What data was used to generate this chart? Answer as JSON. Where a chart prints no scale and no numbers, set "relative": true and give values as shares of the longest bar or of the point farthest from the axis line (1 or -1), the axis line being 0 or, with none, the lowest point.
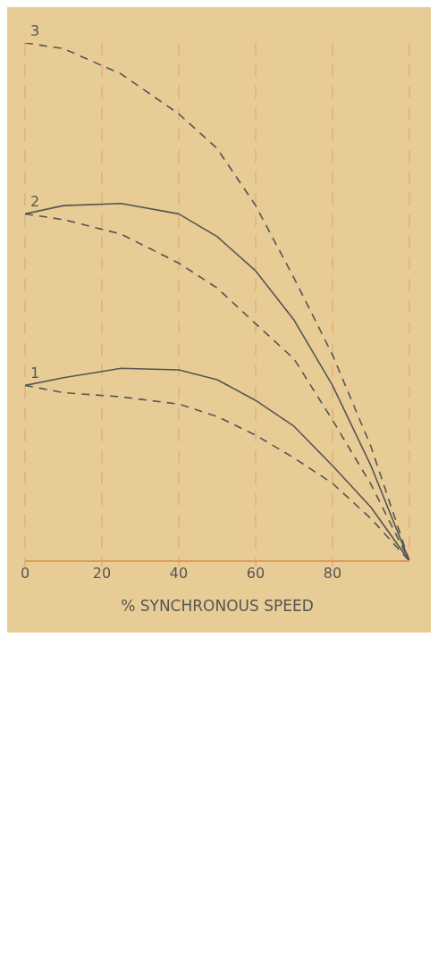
{
  "chart_data": {
    "type": "line",
    "xlabel": "% SYNCHRONOUS SPEED",
    "x": [
      0,
      10,
      25,
      40,
      50,
      60,
      70,
      80,
      90,
      100
    ],
    "xlim": [
      0,
      100
    ],
    "xticks": [
      0,
      20,
      40,
      60,
      80
    ],
    "relative": true,
    "grid": "x",
    "marker": "none",
    "series": [
      {
        "name": "1",
        "color": "#555555",
        "line_style": "solid",
        "values": [
          0.339,
          0.354,
          0.372,
          0.369,
          0.35,
          0.31,
          0.26,
          0.184,
          0.104,
          0
        ]
      },
      {
        "color": "#555555",
        "line_style": "dashed",
        "values": [
          0.339,
          0.325,
          0.317,
          0.303,
          0.279,
          0.243,
          0.199,
          0.15,
          0.082,
          0
        ]
      },
      {
        "name": "2",
        "color": "#555555",
        "line_style": "solid",
        "values": [
          0.67,
          0.686,
          0.69,
          0.67,
          0.626,
          0.56,
          0.465,
          0.339,
          0.184,
          0
        ]
      },
      {
        "color": "#555555",
        "line_style": "dashed",
        "values": [
          0.67,
          0.659,
          0.631,
          0.575,
          0.527,
          0.458,
          0.39,
          0.272,
          0.148,
          0
        ]
      },
      {
        "name": "3",
        "color": "#555555",
        "line_style": "dashed",
        "values": [
          1,
          0.989,
          0.94,
          0.863,
          0.796,
          0.686,
          0.546,
          0.398,
          0.221,
          0
        ]
      }
    ]
  }
}
